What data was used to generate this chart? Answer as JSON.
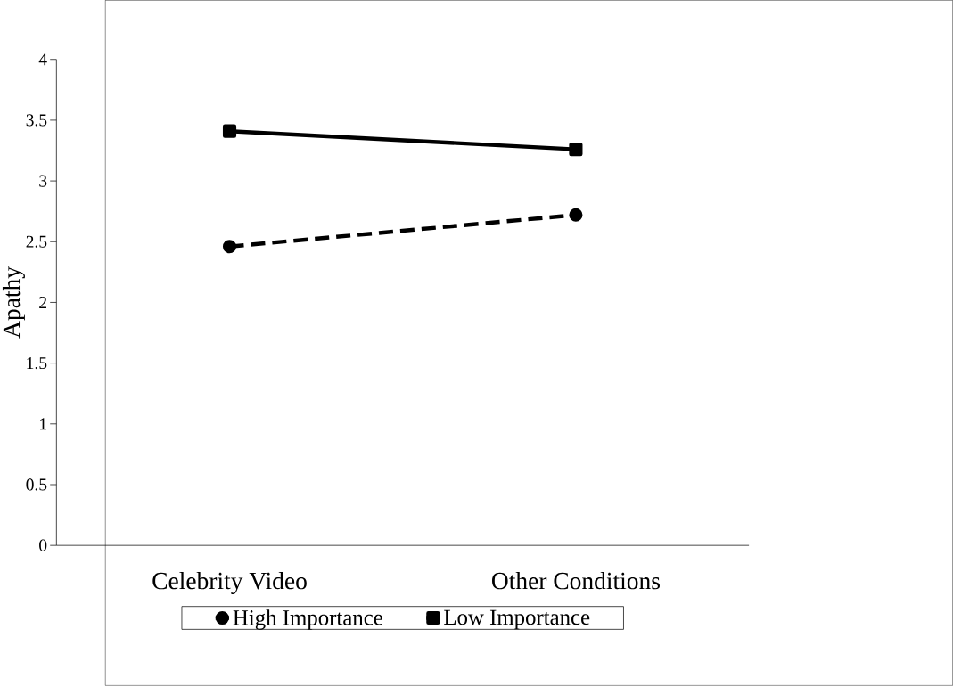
{
  "chart_data": {
    "type": "line",
    "ylabel": "Apathy",
    "categories": [
      "Celebrity Video",
      "Other Conditions"
    ],
    "series": [
      {
        "name": "High Importance",
        "color": "#000000",
        "values": [
          2.46,
          2.72
        ],
        "marker": "circle",
        "line_style": "dashed"
      },
      {
        "name": "Low Importance",
        "color": "#000000",
        "values": [
          3.41,
          3.26
        ],
        "marker": "square",
        "line_style": "solid"
      }
    ],
    "ylim": [
      0,
      4
    ],
    "yticks": [
      0,
      0.5,
      1,
      1.5,
      2,
      2.5,
      3,
      3.5,
      4
    ],
    "grid": false,
    "legend": "bottom"
  }
}
